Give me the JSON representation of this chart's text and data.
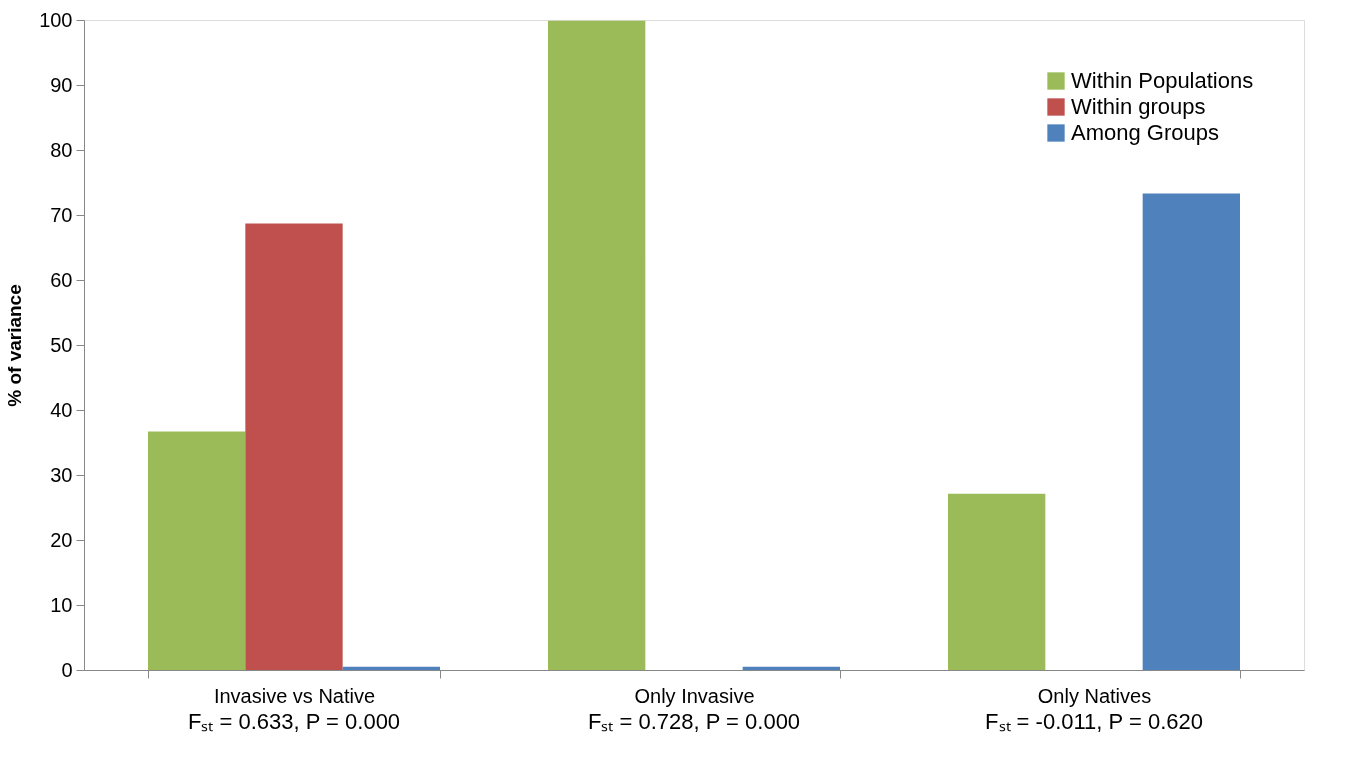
{
  "chart_data": {
    "type": "bar",
    "ylabel": "% of variance",
    "categories": [
      "Invasive vs Native",
      "Only Invasive",
      "Only Natives"
    ],
    "series": [
      {
        "name": "Within Populations",
        "color": "#9bbb59",
        "values": [
          36.7,
          99.9,
          27.1
        ]
      },
      {
        "name": "Within groups",
        "color": "#c0504d",
        "values": [
          68.7,
          null,
          null
        ]
      },
      {
        "name": "Among Groups",
        "color": "#4f81bd",
        "values": [
          0.5,
          0.5,
          73.3
        ]
      }
    ],
    "ylim": [
      0,
      100
    ],
    "yticks": [
      0,
      10,
      20,
      30,
      40,
      50,
      60,
      70,
      80,
      90,
      100
    ],
    "grid": false,
    "legend": "top right",
    "annotations": [
      "Fₛₜ = 0.633, P = 0.000",
      "Fₛₜ = 0.728, P = 0.000",
      "Fₛₜ = -0.011, P = 0.620"
    ]
  }
}
